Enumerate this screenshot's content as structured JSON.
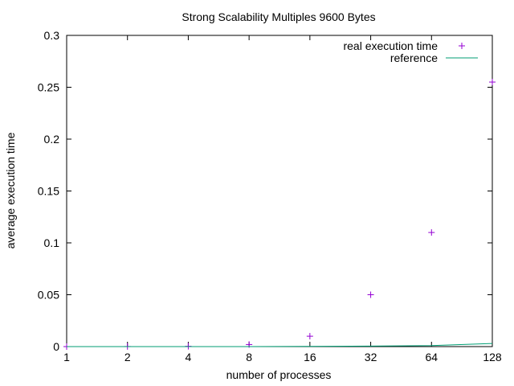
{
  "chart_data": {
    "type": "scatter",
    "title": "Strong Scalability Multiples 9600 Bytes",
    "xlabel": "number of processes",
    "ylabel": "average execution time",
    "x_scale": "log2",
    "xlim": [
      1,
      128
    ],
    "ylim": [
      0,
      0.3
    ],
    "x_ticks": [
      "1",
      "2",
      "4",
      "8",
      "16",
      "32",
      "64",
      "128"
    ],
    "y_ticks": [
      "0",
      "0.05",
      "0.1",
      "0.15",
      "0.2",
      "0.25",
      "0.3"
    ],
    "grid": false,
    "legend_position": "top-right",
    "series": [
      {
        "name": "real execution time",
        "kind": "points",
        "marker": "+",
        "color": "#9400d3",
        "x": [
          1,
          2,
          4,
          8,
          16,
          32,
          64,
          128
        ],
        "y": [
          0.0,
          0.0001,
          0.0003,
          0.002,
          0.01,
          0.05,
          0.11,
          0.255
        ]
      },
      {
        "name": "reference",
        "kind": "line",
        "color": "#009e73",
        "x": [
          1,
          2,
          4,
          8,
          16,
          32,
          64,
          128
        ],
        "y": [
          0.0,
          0.0,
          0.0,
          0.0,
          0.0002,
          0.0005,
          0.001,
          0.003
        ]
      }
    ]
  }
}
